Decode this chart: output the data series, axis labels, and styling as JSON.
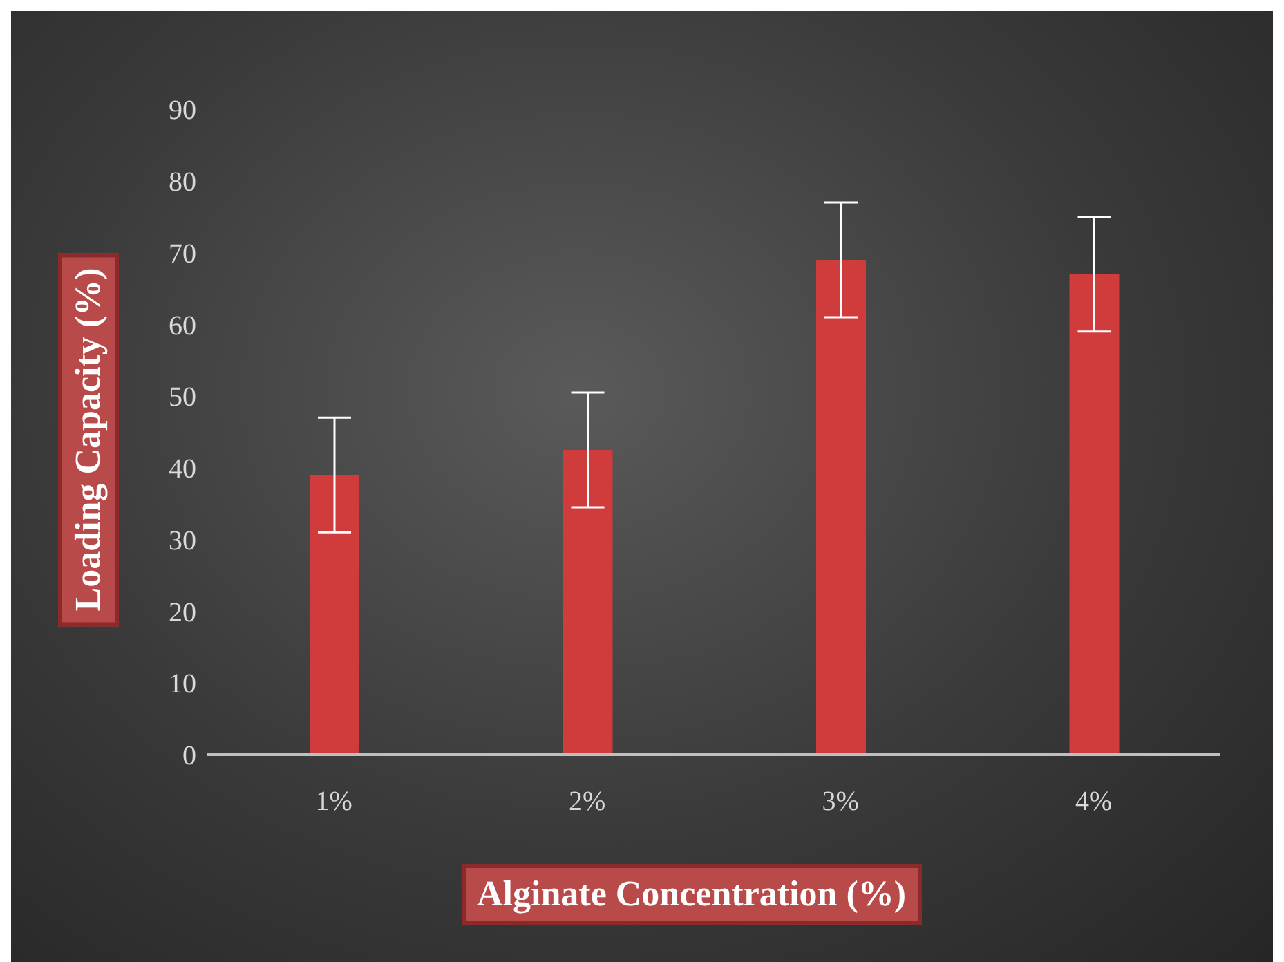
{
  "chart_data": {
    "type": "bar",
    "xlabel": "Alginate Concentration (%)",
    "ylabel": "Loading Capacity (%)",
    "categories": [
      "1%",
      "2%",
      "3%",
      "4%"
    ],
    "values": [
      39,
      42.5,
      69,
      67
    ],
    "errors": [
      8,
      8,
      8,
      8
    ],
    "color": "#d03c3c",
    "ylim": [
      0,
      90
    ],
    "yticks": [
      0,
      10,
      20,
      30,
      40,
      50,
      60,
      70,
      80,
      90
    ],
    "grid": false,
    "legend": false
  }
}
